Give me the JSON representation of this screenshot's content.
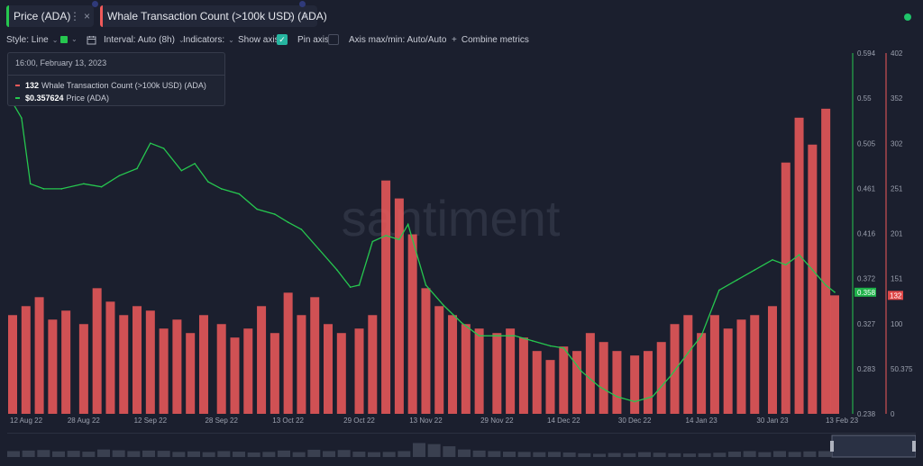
{
  "tabs": [
    {
      "label": "Price (ADA)",
      "color": "#26c74f"
    },
    {
      "label": "Whale Transaction Count (>100k USD) (ADA)",
      "color": "#f05a5a"
    }
  ],
  "icons": {
    "menu": "⋮",
    "close": "×",
    "chevron": "⌄",
    "combine": "+",
    "check": "✓"
  },
  "toolbar": {
    "style": "Style: Line",
    "interval": "Interval: Auto (8h)",
    "indicators": "Indicators:",
    "show_axis": "Show axis",
    "pin_axis": "Pin axis",
    "axis_minmax": "Axis max/min: Auto/Auto",
    "combine": "Combine metrics"
  },
  "tooltip": {
    "date": "16:00, February 13, 2023",
    "whale_value": "132",
    "whale_label": "Whale Transaction Count (>100k USD) (ADA)",
    "price_value": "$0.357624",
    "price_label": "Price (ADA)"
  },
  "watermark": "santiment",
  "chart_data": {
    "type": "line",
    "x_labels": [
      "12 Aug 22",
      "28 Aug 22",
      "12 Sep 22",
      "28 Sep 22",
      "13 Oct 22",
      "29 Oct 22",
      "13 Nov 22",
      "29 Nov 22",
      "14 Dec 22",
      "30 Dec 22",
      "14 Jan 23",
      "30 Jan 23",
      "13 Feb 23"
    ],
    "series": [
      {
        "name": "Price (ADA)",
        "type": "line",
        "color": "#26c74f",
        "axis": "left",
        "ylim": [
          0.238,
          0.594
        ],
        "ticks": [
          "0.594",
          "0.55",
          "0.505",
          "0.461",
          "0.416",
          "0.372",
          "0.327",
          "0.283",
          "0.238"
        ],
        "current_label": "0.358",
        "x": [
          "12 Aug 22",
          "14 Aug 22",
          "16 Aug 22",
          "19 Aug 22",
          "23 Aug 22",
          "28 Aug 22",
          "1 Sep 22",
          "5 Sep 22",
          "9 Sep 22",
          "12 Sep 22",
          "15 Sep 22",
          "19 Sep 22",
          "22 Sep 22",
          "25 Sep 22",
          "28 Sep 22",
          "2 Oct 22",
          "6 Oct 22",
          "10 Oct 22",
          "13 Oct 22",
          "16 Oct 22",
          "20 Oct 22",
          "24 Oct 22",
          "27 Oct 22",
          "29 Oct 22",
          "1 Nov 22",
          "4 Nov 22",
          "7 Nov 22",
          "9 Nov 22",
          "11 Nov 22",
          "13 Nov 22",
          "17 Nov 22",
          "21 Nov 22",
          "25 Nov 22",
          "29 Nov 22",
          "3 Dec 22",
          "7 Dec 22",
          "11 Dec 22",
          "14 Dec 22",
          "18 Dec 22",
          "22 Dec 22",
          "26 Dec 22",
          "30 Dec 22",
          "3 Jan 23",
          "7 Jan 23",
          "11 Jan 23",
          "14 Jan 23",
          "18 Jan 23",
          "22 Jan 23",
          "26 Jan 23",
          "30 Jan 23",
          "2 Feb 23",
          "5 Feb 23",
          "8 Feb 23",
          "11 Feb 23",
          "13 Feb 23"
        ],
        "values": [
          0.545,
          0.53,
          0.465,
          0.46,
          0.46,
          0.465,
          0.462,
          0.473,
          0.48,
          0.505,
          0.5,
          0.478,
          0.485,
          0.467,
          0.46,
          0.455,
          0.44,
          0.435,
          0.427,
          0.42,
          0.4,
          0.38,
          0.363,
          0.365,
          0.408,
          0.414,
          0.41,
          0.425,
          0.395,
          0.365,
          0.345,
          0.328,
          0.315,
          0.315,
          0.315,
          0.31,
          0.305,
          0.303,
          0.28,
          0.265,
          0.255,
          0.25,
          0.255,
          0.275,
          0.298,
          0.315,
          0.36,
          0.37,
          0.38,
          0.39,
          0.385,
          0.395,
          0.38,
          0.365,
          0.358
        ]
      },
      {
        "name": "Whale Transaction Count (>100k USD) (ADA)",
        "type": "bar",
        "color": "#f05a5a",
        "axis": "right",
        "ylim": [
          0,
          402
        ],
        "ticks": [
          "402",
          "352",
          "302",
          "251",
          "201",
          "151",
          "100",
          "50.375",
          "0"
        ],
        "current_label": "132",
        "x": [
          "12 Aug 22",
          "15 Aug 22",
          "18 Aug 22",
          "21 Aug 22",
          "24 Aug 22",
          "28 Aug 22",
          "31 Aug 22",
          "3 Sep 22",
          "6 Sep 22",
          "9 Sep 22",
          "12 Sep 22",
          "15 Sep 22",
          "18 Sep 22",
          "21 Sep 22",
          "24 Sep 22",
          "28 Sep 22",
          "1 Oct 22",
          "4 Oct 22",
          "7 Oct 22",
          "10 Oct 22",
          "13 Oct 22",
          "16 Oct 22",
          "19 Oct 22",
          "22 Oct 22",
          "25 Oct 22",
          "29 Oct 22",
          "1 Nov 22",
          "4 Nov 22",
          "7 Nov 22",
          "10 Nov 22",
          "13 Nov 22",
          "16 Nov 22",
          "19 Nov 22",
          "22 Nov 22",
          "25 Nov 22",
          "29 Nov 22",
          "2 Dec 22",
          "5 Dec 22",
          "8 Dec 22",
          "11 Dec 22",
          "14 Dec 22",
          "17 Dec 22",
          "20 Dec 22",
          "23 Dec 22",
          "26 Dec 22",
          "30 Dec 22",
          "2 Jan 23",
          "5 Jan 23",
          "8 Jan 23",
          "11 Jan 23",
          "14 Jan 23",
          "17 Jan 23",
          "20 Jan 23",
          "23 Jan 23",
          "26 Jan 23",
          "30 Jan 23",
          "2 Feb 23",
          "5 Feb 23",
          "8 Feb 23",
          "11 Feb 23",
          "13 Feb 23"
        ],
        "values": [
          110,
          120,
          130,
          105,
          115,
          100,
          140,
          125,
          110,
          120,
          115,
          95,
          105,
          90,
          110,
          100,
          85,
          95,
          120,
          90,
          135,
          110,
          130,
          100,
          90,
          95,
          110,
          260,
          240,
          200,
          140,
          120,
          110,
          100,
          95,
          90,
          95,
          85,
          70,
          60,
          75,
          70,
          90,
          80,
          70,
          65,
          70,
          80,
          100,
          110,
          90,
          110,
          95,
          105,
          110,
          120,
          280,
          330,
          300,
          340,
          132
        ]
      }
    ]
  }
}
